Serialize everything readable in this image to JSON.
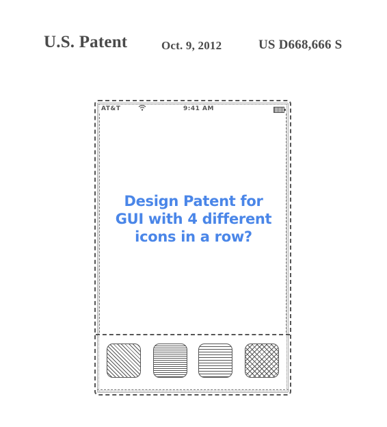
{
  "header": {
    "title": "U.S. Patent",
    "date": "Oct. 9, 2012",
    "patent_number": "US D668,666 S"
  },
  "phone": {
    "status_bar": {
      "carrier": "AT&T",
      "wifi_icon": "wifi-icon",
      "time": "9:41 AM",
      "battery_icon": "battery-icon"
    },
    "dock": {
      "icons": [
        {
          "name": "diagonal-hatch-icon"
        },
        {
          "name": "horizontal-lines-icon"
        },
        {
          "name": "horizontal-lines-wide-icon"
        },
        {
          "name": "crosshatch-icon"
        }
      ]
    }
  },
  "caption": {
    "line1": "Design Patent for",
    "line2": "GUI with 4 different",
    "line3": "icons in a row?",
    "color": "#4a86e8"
  }
}
